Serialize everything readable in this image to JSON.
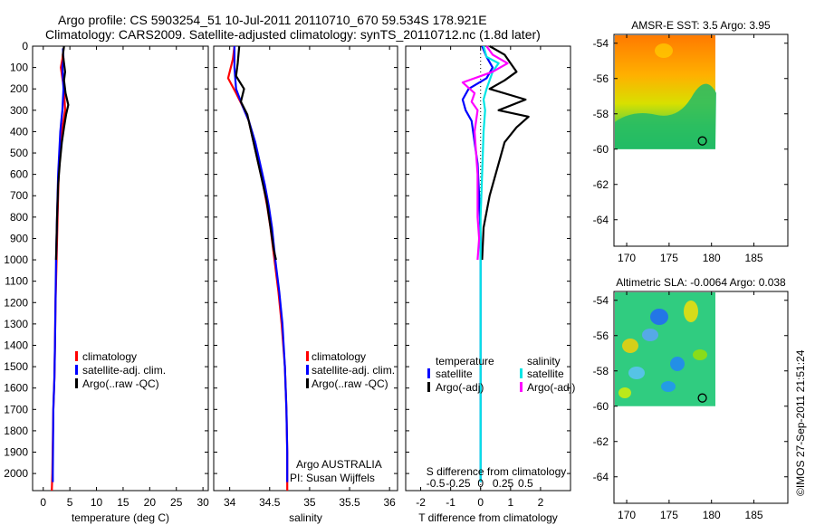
{
  "header": {
    "title_line1": "Argo profile: CS 5903254_51 10-Jul-2011 20110710_670 59.534S 178.921E",
    "title_line2": "Climatology: CARS2009. Satellite-adjusted climatology: synTS_20110712.nc (1.8d later)"
  },
  "footer": {
    "stamp": "©IMOS 27-Sep-2011 21:51:24"
  },
  "colors": {
    "climatology": "#ff0000",
    "satellite": "#0000ff",
    "argo": "#000000",
    "salinity_satellite": "#00e5e5",
    "salinity_argo": "#ff00ff"
  },
  "chart_data": [
    {
      "id": "temperature",
      "type": "line",
      "xlabel": "temperature (deg C)",
      "xlim": [
        -2,
        31
      ],
      "xticks": [
        0,
        5,
        10,
        15,
        20,
        25,
        30
      ],
      "ylim": [
        0,
        2080
      ],
      "yticks": [
        0,
        100,
        200,
        300,
        400,
        500,
        600,
        700,
        800,
        900,
        1000,
        1100,
        1200,
        1300,
        1400,
        1500,
        1600,
        1700,
        1800,
        1900,
        2000
      ],
      "legend": [
        "climatology",
        "satellite-adj. clim.",
        "Argo(..raw -QC)"
      ],
      "series": [
        {
          "name": "climatology",
          "color": "#ff0000",
          "points": [
            [
              3.8,
              10
            ],
            [
              3.6,
              60
            ],
            [
              3.3,
              100
            ],
            [
              3.6,
              150
            ],
            [
              3.9,
              200
            ],
            [
              4.0,
              250
            ],
            [
              4.1,
              300
            ],
            [
              3.8,
              350
            ],
            [
              3.5,
              400
            ],
            [
              3.2,
              500
            ],
            [
              2.9,
              600
            ],
            [
              2.7,
              800
            ],
            [
              2.5,
              1000
            ],
            [
              2.3,
              1200
            ],
            [
              2.2,
              1400
            ],
            [
              2.1,
              1550
            ],
            [
              1.9,
              1700
            ],
            [
              1.7,
              2000
            ],
            [
              1.6,
              2080
            ]
          ]
        },
        {
          "name": "satellite-adj. clim.",
          "color": "#0000ff",
          "points": [
            [
              3.7,
              10
            ],
            [
              3.8,
              60
            ],
            [
              3.6,
              100
            ],
            [
              3.7,
              150
            ],
            [
              3.8,
              200
            ],
            [
              3.7,
              250
            ],
            [
              3.6,
              300
            ],
            [
              3.4,
              350
            ],
            [
              3.2,
              400
            ],
            [
              3.0,
              500
            ],
            [
              2.8,
              600
            ],
            [
              2.6,
              800
            ],
            [
              2.4,
              1000
            ],
            [
              2.3,
              1200
            ],
            [
              2.2,
              1400
            ],
            [
              2.1,
              1550
            ],
            [
              1.9,
              1700
            ],
            [
              1.8,
              2000
            ],
            [
              1.8,
              2040
            ]
          ]
        },
        {
          "name": "Argo(..raw -QC)",
          "color": "#000000",
          "points": [
            [
              3.9,
              0
            ],
            [
              3.7,
              40
            ],
            [
              3.9,
              80
            ],
            [
              4.1,
              120
            ],
            [
              3.9,
              160
            ],
            [
              4.2,
              220
            ],
            [
              4.7,
              275
            ],
            [
              4.3,
              320
            ],
            [
              3.9,
              380
            ],
            [
              3.5,
              450
            ],
            [
              3.1,
              550
            ],
            [
              2.8,
              650
            ],
            [
              2.6,
              800
            ],
            [
              2.4,
              1000
            ]
          ]
        }
      ]
    },
    {
      "id": "salinity",
      "type": "line",
      "xlabel": "salinity",
      "xlim": [
        33.8,
        36.1
      ],
      "xticks": [
        34,
        34.5,
        35,
        35.5,
        36
      ],
      "ylim": [
        0,
        2080
      ],
      "legend": [
        "climatology",
        "satellite-adj. clim.",
        "Argo(..raw -QC)"
      ],
      "annotation": [
        "Argo AUSTRALIA",
        "PI: Susan Wijffels"
      ],
      "series": [
        {
          "name": "climatology",
          "color": "#ff0000",
          "points": [
            [
              34.06,
              0
            ],
            [
              34.04,
              60
            ],
            [
              33.98,
              150
            ],
            [
              34.08,
              220
            ],
            [
              34.16,
              280
            ],
            [
              34.24,
              350
            ],
            [
              34.3,
              450
            ],
            [
              34.36,
              550
            ],
            [
              34.42,
              650
            ],
            [
              34.47,
              750
            ],
            [
              34.51,
              850
            ],
            [
              34.56,
              1000
            ],
            [
              34.61,
              1150
            ],
            [
              34.65,
              1300
            ],
            [
              34.69,
              1500
            ],
            [
              34.71,
              1700
            ],
            [
              34.72,
              1900
            ],
            [
              34.72,
              2080
            ]
          ]
        },
        {
          "name": "satellite-adj. clim.",
          "color": "#0000ff",
          "points": [
            [
              34.06,
              0
            ],
            [
              34.06,
              100
            ],
            [
              34.08,
              200
            ],
            [
              34.16,
              280
            ],
            [
              34.24,
              350
            ],
            [
              34.32,
              450
            ],
            [
              34.38,
              550
            ],
            [
              34.44,
              650
            ],
            [
              34.49,
              750
            ],
            [
              34.53,
              850
            ],
            [
              34.57,
              1000
            ],
            [
              34.62,
              1150
            ],
            [
              34.66,
              1300
            ],
            [
              34.69,
              1500
            ],
            [
              34.71,
              1700
            ],
            [
              34.72,
              1900
            ],
            [
              34.72,
              2040
            ]
          ]
        },
        {
          "name": "Argo(..raw -QC)",
          "color": "#000000",
          "points": [
            [
              34.12,
              0
            ],
            [
              34.1,
              80
            ],
            [
              34.08,
              140
            ],
            [
              34.18,
              200
            ],
            [
              34.14,
              260
            ],
            [
              34.22,
              320
            ],
            [
              34.28,
              420
            ],
            [
              34.34,
              520
            ],
            [
              34.4,
              620
            ],
            [
              34.46,
              720
            ],
            [
              34.5,
              820
            ],
            [
              34.55,
              950
            ],
            [
              34.58,
              1000
            ]
          ]
        }
      ]
    },
    {
      "id": "difference",
      "type": "line",
      "xlabel": "T difference from climatology",
      "xlabel_top": "S difference from climatology",
      "xlim": [
        -2.5,
        3
      ],
      "xticks": [
        -2,
        -1,
        0,
        1,
        2
      ],
      "xticklabels_s": [
        "-0.5",
        "-0.25",
        "0",
        "0.25",
        "0.5"
      ],
      "ylim": [
        0,
        2080
      ],
      "legend_temperature": [
        "temperature",
        "satellite",
        "Argo(-adj)"
      ],
      "legend_salinity": [
        "salinity",
        "satellite",
        "Argo(-adj)"
      ],
      "series": [
        {
          "name": "temperature satellite",
          "color": "#0000ff",
          "points": [
            [
              0.05,
              0
            ],
            [
              0.2,
              50
            ],
            [
              0.4,
              100
            ],
            [
              0.2,
              150
            ],
            [
              -0.4,
              200
            ],
            [
              -0.6,
              250
            ],
            [
              -0.5,
              300
            ],
            [
              -0.3,
              350
            ],
            [
              -0.2,
              450
            ],
            [
              -0.1,
              550
            ],
            [
              -0.05,
              700
            ],
            [
              0,
              900
            ],
            [
              0,
              1200
            ],
            [
              0,
              1600
            ],
            [
              0,
              2040
            ]
          ]
        },
        {
          "name": "temperature Argo(-adj)",
          "color": "#000000",
          "points": [
            [
              0.3,
              0
            ],
            [
              0.8,
              40
            ],
            [
              1.0,
              80
            ],
            [
              1.2,
              120
            ],
            [
              0.8,
              160
            ],
            [
              0.3,
              200
            ],
            [
              1.5,
              250
            ],
            [
              0.6,
              300
            ],
            [
              1.6,
              330
            ],
            [
              1.2,
              380
            ],
            [
              0.8,
              450
            ],
            [
              0.6,
              550
            ],
            [
              0.3,
              700
            ],
            [
              0.1,
              850
            ],
            [
              0.05,
              1000
            ]
          ]
        },
        {
          "name": "salinity satellite",
          "color": "#00e5e5",
          "points": [
            [
              0.1,
              0
            ],
            [
              0.2,
              50
            ],
            [
              0.6,
              80
            ],
            [
              0.4,
              120
            ],
            [
              0.2,
              200
            ],
            [
              0.1,
              250
            ],
            [
              0.15,
              300
            ],
            [
              0.1,
              400
            ],
            [
              0.05,
              600
            ],
            [
              0,
              800
            ],
            [
              0,
              1000
            ],
            [
              0,
              1200
            ],
            [
              0,
              1500
            ],
            [
              0,
              2040
            ]
          ]
        },
        {
          "name": "salinity Argo(-adj)",
          "color": "#ff00ff",
          "points": [
            [
              0.2,
              0
            ],
            [
              0.4,
              40
            ],
            [
              0.9,
              80
            ],
            [
              0.4,
              120
            ],
            [
              -0.6,
              170
            ],
            [
              -0.2,
              220
            ],
            [
              -0.3,
              260
            ],
            [
              -0.1,
              300
            ],
            [
              -0.2,
              400
            ],
            [
              -0.1,
              600
            ],
            [
              -0.1,
              800
            ],
            [
              -0.05,
              900
            ],
            [
              -0.1,
              1000
            ]
          ]
        }
      ]
    },
    {
      "id": "sst_map",
      "type": "heatmap",
      "title": "AMSR-E SST: 3.5 Argo: 3.95",
      "xlim": [
        168.5,
        189
      ],
      "ylim": [
        -65.5,
        -53.5
      ],
      "xticks": [
        170,
        175,
        180,
        185
      ],
      "yticks": [
        -54,
        -56,
        -58,
        -60,
        -62,
        -64
      ],
      "argo_position": [
        178.921,
        -59.534
      ]
    },
    {
      "id": "sla_map",
      "type": "heatmap",
      "title": "Altimetric SLA: -0.0064 Argo: 0.038",
      "xlim": [
        168.5,
        189
      ],
      "ylim": [
        -65.5,
        -53.5
      ],
      "xticks": [
        170,
        175,
        180,
        185
      ],
      "yticks": [
        -54,
        -56,
        -58,
        -60,
        -62,
        -64
      ],
      "argo_position": [
        178.921,
        -59.534
      ]
    }
  ]
}
